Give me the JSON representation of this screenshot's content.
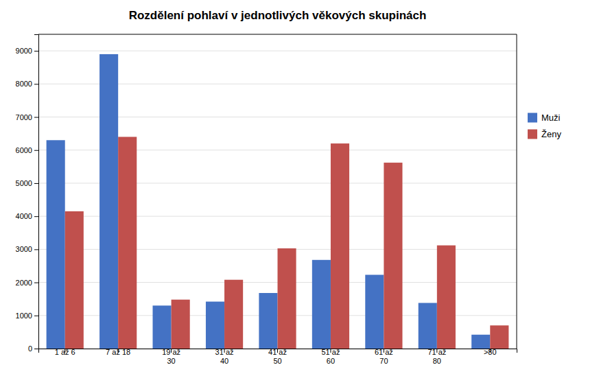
{
  "chart_data": {
    "type": "bar",
    "title": "Rozdělení pohlaví v jednotlivých věkových skupinách",
    "categories": [
      "1 až 6",
      "7 až 18",
      "19 až\n30",
      "31 až\n40",
      "41 až\n50",
      "51 až\n60",
      "61 až\n70",
      "71 až\n80",
      ">80"
    ],
    "series": [
      {
        "name": "Muži",
        "color": "#4472C4",
        "values": [
          6300,
          8900,
          1300,
          1420,
          1680,
          2680,
          2230,
          1380,
          420
        ]
      },
      {
        "name": "Ženy",
        "color": "#C0504D",
        "values": [
          4150,
          6400,
          1480,
          2080,
          3030,
          6200,
          5620,
          3120,
          700
        ]
      }
    ],
    "ylim": [
      0,
      9500
    ],
    "yticks": [
      0,
      1000,
      2000,
      3000,
      4000,
      5000,
      6000,
      7000,
      8000,
      9000
    ],
    "grid": true,
    "legend": "right"
  }
}
